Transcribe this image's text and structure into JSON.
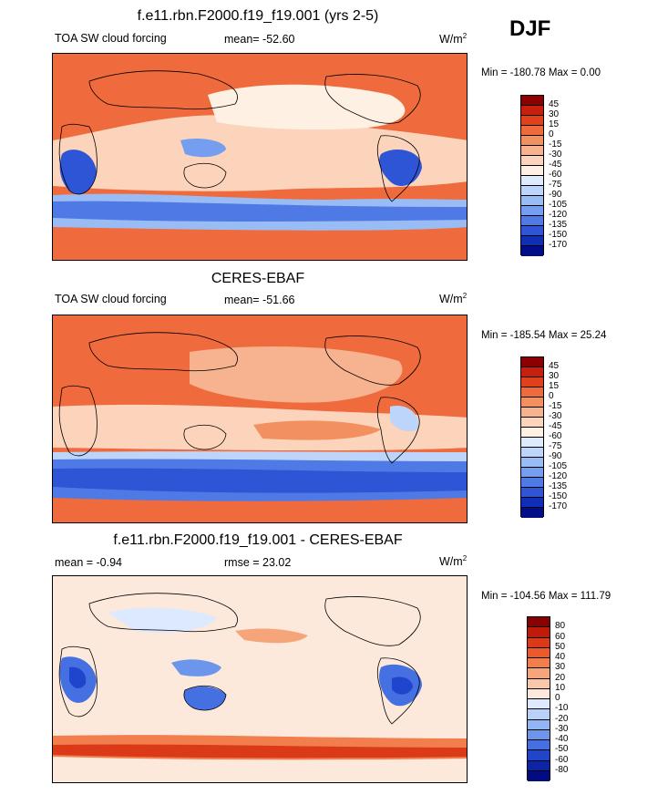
{
  "season": "DJF",
  "panels": [
    {
      "title": "f.e11.rbn.F2000.f19_f19.001 (yrs 2-5)",
      "left_label": "TOA SW cloud forcing",
      "center_label": "mean= -52.60",
      "units": "W/m",
      "units_sup": "2",
      "minmax": "Min = -180.78 Max =   0.00",
      "colorbar": {
        "levels": [
          "45",
          "30",
          "15",
          "0",
          "-15",
          "-30",
          "-45",
          "-60",
          "-75",
          "-90",
          "-105",
          "-120",
          "-135",
          "-150",
          "-170"
        ],
        "colors": [
          "#8b0000",
          "#c8200f",
          "#e0401c",
          "#ef6a3c",
          "#f3905f",
          "#f7b28f",
          "#fbd4bb",
          "#fff0e4",
          "#deebff",
          "#bdd4fb",
          "#9abcf5",
          "#759ef0",
          "#4f7ae6",
          "#2d55d6",
          "#0f2fb8",
          "#020d88"
        ]
      }
    },
    {
      "title": "CERES-EBAF",
      "left_label": "TOA SW cloud forcing",
      "center_label": "mean= -51.66",
      "units": "W/m",
      "units_sup": "2",
      "minmax": "Min = -185.54 Max =  25.24",
      "colorbar": {
        "levels": [
          "45",
          "30",
          "15",
          "0",
          "-15",
          "-30",
          "-45",
          "-60",
          "-75",
          "-90",
          "-105",
          "-120",
          "-135",
          "-150",
          "-170"
        ],
        "colors": [
          "#8b0000",
          "#c8200f",
          "#e0401c",
          "#ef6a3c",
          "#f3905f",
          "#f7b28f",
          "#fbd4bb",
          "#fff0e4",
          "#deebff",
          "#bdd4fb",
          "#9abcf5",
          "#759ef0",
          "#4f7ae6",
          "#2d55d6",
          "#0f2fb8",
          "#020d88"
        ]
      }
    },
    {
      "title": "f.e11.rbn.F2000.f19_f19.001 - CERES-EBAF",
      "left_label": "mean =  -0.94",
      "center_label": "rmse =  23.02",
      "units": "W/m",
      "units_sup": "2",
      "minmax": "Min = -104.56 Max = 111.79",
      "colorbar": {
        "levels": [
          "80",
          "60",
          "50",
          "40",
          "30",
          "20",
          "10",
          "0",
          "-10",
          "-20",
          "-30",
          "-40",
          "-50",
          "-60",
          "-80"
        ],
        "colors": [
          "#8b0000",
          "#c21a0a",
          "#db3a18",
          "#ec5a2c",
          "#f27e4e",
          "#f6a57b",
          "#fac8a8",
          "#fde9db",
          "#dce9ff",
          "#b9d0fa",
          "#92b5f3",
          "#6c96ec",
          "#4570e2",
          "#1f45cc",
          "#0c25a8",
          "#020b80"
        ]
      }
    }
  ]
}
